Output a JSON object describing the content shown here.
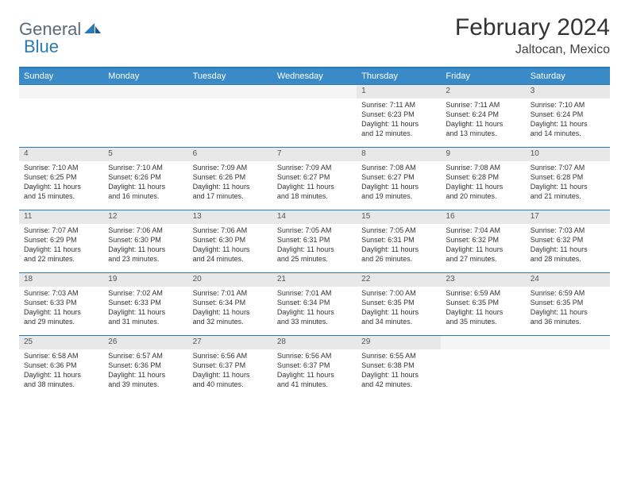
{
  "logo": {
    "part1": "General",
    "part2": "Blue"
  },
  "title": "February 2024",
  "location": "Jaltocan, Mexico",
  "colors": {
    "header_bar": "#3a8ac8",
    "accent_line": "#2b7ab8",
    "daynum_bg": "#e8e8e8",
    "text": "#333333"
  },
  "days_of_week": [
    "Sunday",
    "Monday",
    "Tuesday",
    "Wednesday",
    "Thursday",
    "Friday",
    "Saturday"
  ],
  "weeks": [
    [
      {
        "empty": true
      },
      {
        "empty": true
      },
      {
        "empty": true
      },
      {
        "empty": true
      },
      {
        "n": "1",
        "sunrise": "Sunrise: 7:11 AM",
        "sunset": "Sunset: 6:23 PM",
        "day1": "Daylight: 11 hours",
        "day2": "and 12 minutes."
      },
      {
        "n": "2",
        "sunrise": "Sunrise: 7:11 AM",
        "sunset": "Sunset: 6:24 PM",
        "day1": "Daylight: 11 hours",
        "day2": "and 13 minutes."
      },
      {
        "n": "3",
        "sunrise": "Sunrise: 7:10 AM",
        "sunset": "Sunset: 6:24 PM",
        "day1": "Daylight: 11 hours",
        "day2": "and 14 minutes."
      }
    ],
    [
      {
        "n": "4",
        "sunrise": "Sunrise: 7:10 AM",
        "sunset": "Sunset: 6:25 PM",
        "day1": "Daylight: 11 hours",
        "day2": "and 15 minutes."
      },
      {
        "n": "5",
        "sunrise": "Sunrise: 7:10 AM",
        "sunset": "Sunset: 6:26 PM",
        "day1": "Daylight: 11 hours",
        "day2": "and 16 minutes."
      },
      {
        "n": "6",
        "sunrise": "Sunrise: 7:09 AM",
        "sunset": "Sunset: 6:26 PM",
        "day1": "Daylight: 11 hours",
        "day2": "and 17 minutes."
      },
      {
        "n": "7",
        "sunrise": "Sunrise: 7:09 AM",
        "sunset": "Sunset: 6:27 PM",
        "day1": "Daylight: 11 hours",
        "day2": "and 18 minutes."
      },
      {
        "n": "8",
        "sunrise": "Sunrise: 7:08 AM",
        "sunset": "Sunset: 6:27 PM",
        "day1": "Daylight: 11 hours",
        "day2": "and 19 minutes."
      },
      {
        "n": "9",
        "sunrise": "Sunrise: 7:08 AM",
        "sunset": "Sunset: 6:28 PM",
        "day1": "Daylight: 11 hours",
        "day2": "and 20 minutes."
      },
      {
        "n": "10",
        "sunrise": "Sunrise: 7:07 AM",
        "sunset": "Sunset: 6:28 PM",
        "day1": "Daylight: 11 hours",
        "day2": "and 21 minutes."
      }
    ],
    [
      {
        "n": "11",
        "sunrise": "Sunrise: 7:07 AM",
        "sunset": "Sunset: 6:29 PM",
        "day1": "Daylight: 11 hours",
        "day2": "and 22 minutes."
      },
      {
        "n": "12",
        "sunrise": "Sunrise: 7:06 AM",
        "sunset": "Sunset: 6:30 PM",
        "day1": "Daylight: 11 hours",
        "day2": "and 23 minutes."
      },
      {
        "n": "13",
        "sunrise": "Sunrise: 7:06 AM",
        "sunset": "Sunset: 6:30 PM",
        "day1": "Daylight: 11 hours",
        "day2": "and 24 minutes."
      },
      {
        "n": "14",
        "sunrise": "Sunrise: 7:05 AM",
        "sunset": "Sunset: 6:31 PM",
        "day1": "Daylight: 11 hours",
        "day2": "and 25 minutes."
      },
      {
        "n": "15",
        "sunrise": "Sunrise: 7:05 AM",
        "sunset": "Sunset: 6:31 PM",
        "day1": "Daylight: 11 hours",
        "day2": "and 26 minutes."
      },
      {
        "n": "16",
        "sunrise": "Sunrise: 7:04 AM",
        "sunset": "Sunset: 6:32 PM",
        "day1": "Daylight: 11 hours",
        "day2": "and 27 minutes."
      },
      {
        "n": "17",
        "sunrise": "Sunrise: 7:03 AM",
        "sunset": "Sunset: 6:32 PM",
        "day1": "Daylight: 11 hours",
        "day2": "and 28 minutes."
      }
    ],
    [
      {
        "n": "18",
        "sunrise": "Sunrise: 7:03 AM",
        "sunset": "Sunset: 6:33 PM",
        "day1": "Daylight: 11 hours",
        "day2": "and 29 minutes."
      },
      {
        "n": "19",
        "sunrise": "Sunrise: 7:02 AM",
        "sunset": "Sunset: 6:33 PM",
        "day1": "Daylight: 11 hours",
        "day2": "and 31 minutes."
      },
      {
        "n": "20",
        "sunrise": "Sunrise: 7:01 AM",
        "sunset": "Sunset: 6:34 PM",
        "day1": "Daylight: 11 hours",
        "day2": "and 32 minutes."
      },
      {
        "n": "21",
        "sunrise": "Sunrise: 7:01 AM",
        "sunset": "Sunset: 6:34 PM",
        "day1": "Daylight: 11 hours",
        "day2": "and 33 minutes."
      },
      {
        "n": "22",
        "sunrise": "Sunrise: 7:00 AM",
        "sunset": "Sunset: 6:35 PM",
        "day1": "Daylight: 11 hours",
        "day2": "and 34 minutes."
      },
      {
        "n": "23",
        "sunrise": "Sunrise: 6:59 AM",
        "sunset": "Sunset: 6:35 PM",
        "day1": "Daylight: 11 hours",
        "day2": "and 35 minutes."
      },
      {
        "n": "24",
        "sunrise": "Sunrise: 6:59 AM",
        "sunset": "Sunset: 6:35 PM",
        "day1": "Daylight: 11 hours",
        "day2": "and 36 minutes."
      }
    ],
    [
      {
        "n": "25",
        "sunrise": "Sunrise: 6:58 AM",
        "sunset": "Sunset: 6:36 PM",
        "day1": "Daylight: 11 hours",
        "day2": "and 38 minutes."
      },
      {
        "n": "26",
        "sunrise": "Sunrise: 6:57 AM",
        "sunset": "Sunset: 6:36 PM",
        "day1": "Daylight: 11 hours",
        "day2": "and 39 minutes."
      },
      {
        "n": "27",
        "sunrise": "Sunrise: 6:56 AM",
        "sunset": "Sunset: 6:37 PM",
        "day1": "Daylight: 11 hours",
        "day2": "and 40 minutes."
      },
      {
        "n": "28",
        "sunrise": "Sunrise: 6:56 AM",
        "sunset": "Sunset: 6:37 PM",
        "day1": "Daylight: 11 hours",
        "day2": "and 41 minutes."
      },
      {
        "n": "29",
        "sunrise": "Sunrise: 6:55 AM",
        "sunset": "Sunset: 6:38 PM",
        "day1": "Daylight: 11 hours",
        "day2": "and 42 minutes."
      },
      {
        "empty": true
      },
      {
        "empty": true
      }
    ]
  ]
}
